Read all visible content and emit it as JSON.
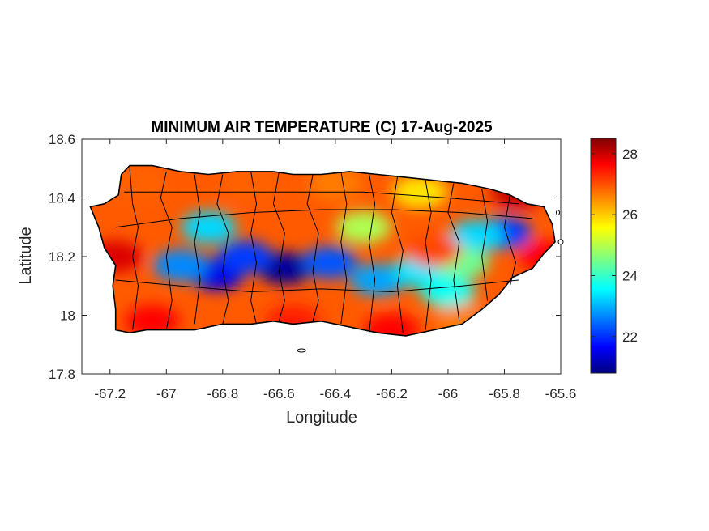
{
  "chart_data": {
    "type": "heatmap",
    "title": "MINIMUM AIR TEMPERATURE (C) 17-Aug-2025",
    "xlabel": "Longitude",
    "ylabel": "Latitude",
    "xlim": [
      -67.3,
      -65.6
    ],
    "ylim": [
      17.8,
      18.6
    ],
    "x_ticks": [
      -67.2,
      -67,
      -66.8,
      -66.6,
      -66.4,
      -66.2,
      -66,
      -65.8,
      -65.6
    ],
    "x_tick_labels": [
      "-67.2",
      "-67",
      "-66.8",
      "-66.6",
      "-66.4",
      "-66.2",
      "-66",
      "-65.8",
      "-65.6"
    ],
    "y_ticks": [
      17.8,
      18,
      18.2,
      18.4,
      18.6
    ],
    "y_tick_labels": [
      "17.8",
      "18",
      "18.2",
      "18.4",
      "18.6"
    ],
    "colormap": "jet",
    "colorbar": {
      "range": [
        20.8,
        28.5
      ],
      "ticks": [
        22,
        24,
        26,
        28
      ],
      "tick_labels": [
        "22",
        "24",
        "26",
        "28"
      ]
    },
    "grid": false,
    "fields": [
      {
        "lon": -66.58,
        "lat": 18.16,
        "value": 21.0
      },
      {
        "lon": -66.82,
        "lat": 18.14,
        "value": 21.6
      },
      {
        "lon": -66.72,
        "lat": 18.2,
        "value": 22.2
      },
      {
        "lon": -66.42,
        "lat": 18.18,
        "value": 22.4
      },
      {
        "lon": -66.95,
        "lat": 18.17,
        "value": 22.8
      },
      {
        "lon": -66.25,
        "lat": 18.12,
        "value": 23.0
      },
      {
        "lon": -65.8,
        "lat": 18.28,
        "value": 22.2
      },
      {
        "lon": -65.9,
        "lat": 18.27,
        "value": 23.4
      },
      {
        "lon": -66.1,
        "lat": 18.15,
        "value": 23.5
      },
      {
        "lon": -66.0,
        "lat": 18.08,
        "value": 23.8
      },
      {
        "lon": -66.85,
        "lat": 18.3,
        "value": 23.4
      },
      {
        "lon": -66.3,
        "lat": 18.3,
        "value": 25.0
      },
      {
        "lon": -65.95,
        "lat": 18.18,
        "value": 24.5
      },
      {
        "lon": -66.05,
        "lat": 18.22,
        "value": 27.0
      },
      {
        "lon": -65.75,
        "lat": 18.42,
        "value": 28.0
      },
      {
        "lon": -67.18,
        "lat": 18.2,
        "value": 27.8
      },
      {
        "lon": -67.05,
        "lat": 17.98,
        "value": 27.5
      },
      {
        "lon": -66.55,
        "lat": 17.98,
        "value": 27.3
      },
      {
        "lon": -66.2,
        "lat": 17.95,
        "value": 27.5
      },
      {
        "lon": -65.95,
        "lat": 17.98,
        "value": 26.6
      },
      {
        "lon": -65.65,
        "lat": 18.2,
        "value": 27.5
      },
      {
        "lon": -66.7,
        "lat": 18.45,
        "value": 26.8
      },
      {
        "lon": -66.4,
        "lat": 18.45,
        "value": 26.6
      },
      {
        "lon": -66.1,
        "lat": 18.42,
        "value": 25.8
      },
      {
        "lon": -67.1,
        "lat": 18.45,
        "value": 26.8
      }
    ]
  }
}
